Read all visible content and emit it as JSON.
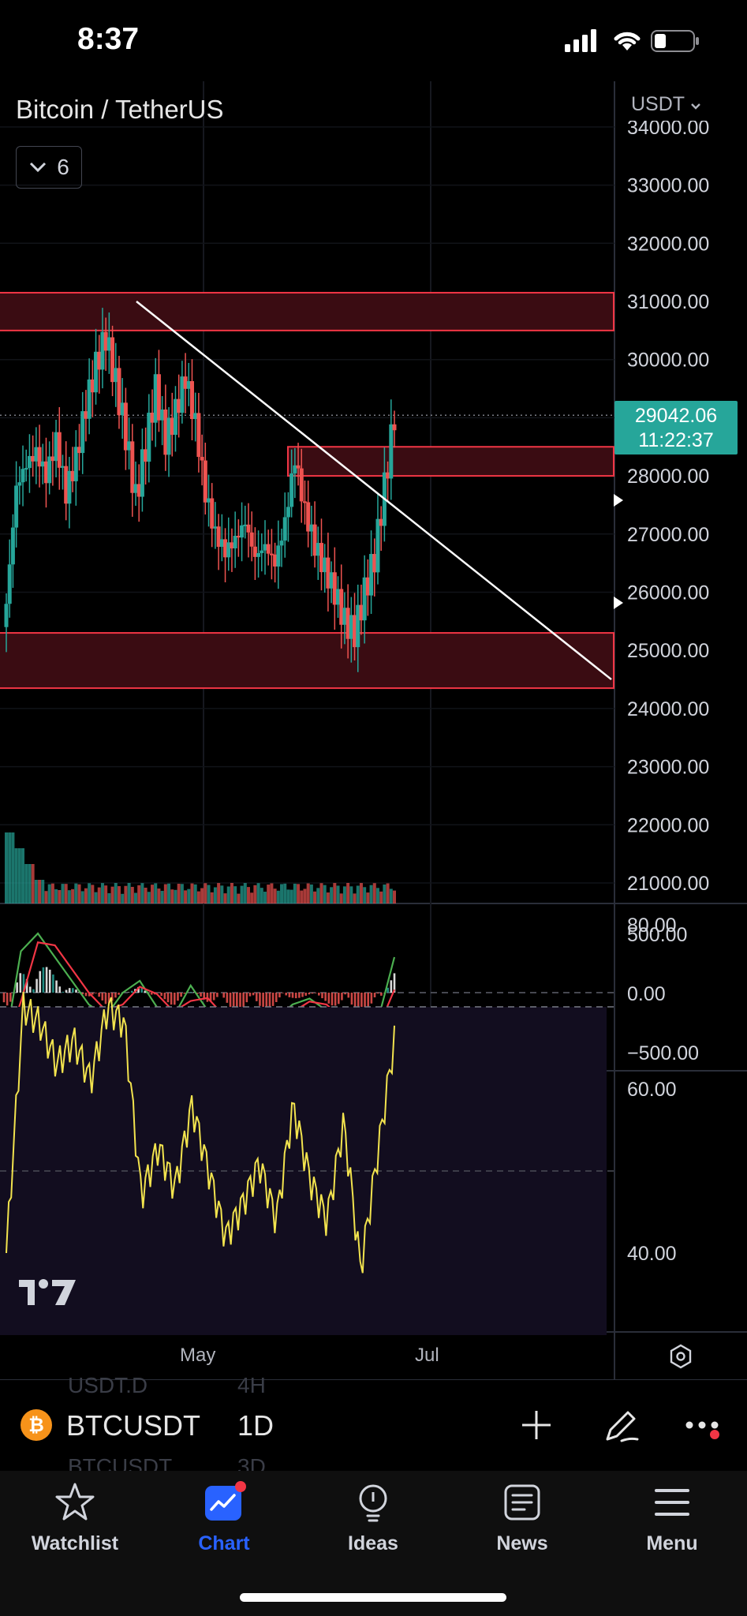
{
  "status_bar": {
    "time": "8:37"
  },
  "chart": {
    "symbol_title": "Bitcoin / TetherUS",
    "indicators_count": "6",
    "currency": "USDT",
    "last_price": "29042.06",
    "countdown": "11:22:37",
    "x_labels": [
      "May",
      "Jul"
    ],
    "price_axis": [
      "34000.00",
      "33000.00",
      "32000.00",
      "31000.00",
      "30000.00",
      "28000.00",
      "27000.00",
      "26000.00",
      "25000.00",
      "24000.00",
      "23000.00",
      "22000.00",
      "21000.00"
    ],
    "macd_axis": [
      "500.00",
      "0.00",
      "−500.00"
    ],
    "rsi_axis": [
      "80.00",
      "60.00",
      "40.00"
    ],
    "colors": {
      "up": "#26a69a",
      "down": "#ef5350",
      "zone": "#3a0c12",
      "zone_border": "#f23645",
      "rsi": "#f2e34e",
      "accent": "#2962ff"
    }
  },
  "chart_data": {
    "type": "candlestick",
    "title": "Bitcoin / TetherUS",
    "interval": "1D",
    "ylim": [
      20800,
      34300
    ],
    "last": 29042.06,
    "resistance_zone": [
      30500,
      31150
    ],
    "support_zone": [
      24350,
      25300
    ],
    "supply_box": [
      28000,
      28500
    ],
    "trendline": [
      [
        0,
        31000
      ],
      [
        1,
        24500
      ]
    ],
    "price": [
      25800,
      27800,
      28200,
      28400,
      28000,
      28600,
      27700,
      28300,
      29200,
      29900,
      30400,
      29600,
      28700,
      27600,
      28500,
      29500,
      28600,
      29100,
      29700,
      28900,
      27700,
      27000,
      26700,
      26900,
      27200,
      26600,
      26800,
      26500,
      27200,
      28300,
      27400,
      26800,
      26400,
      26000,
      25500,
      25300,
      26000,
      26600,
      27800,
      29042
    ],
    "macd": [
      -500,
      350,
      500,
      300,
      100,
      -100,
      -200,
      0,
      100,
      -120,
      -200,
      60,
      -150,
      -250,
      -300,
      -290,
      -230,
      -100,
      -50,
      -150,
      -300,
      -380,
      -250,
      300
    ],
    "rsi": [
      40,
      70,
      68,
      63,
      66,
      61,
      70,
      68,
      47,
      53,
      48,
      58,
      50,
      42,
      46,
      51,
      44,
      58,
      49,
      44,
      56,
      38,
      52,
      66
    ]
  },
  "toolbar": {
    "symbol": "BTCUSDT",
    "interval": "1D",
    "ghost_prev_symbol": "USDT.D",
    "ghost_prev_interval": "4H",
    "ghost_next_symbol": "BTCUSDT",
    "ghost_next_interval": "3D"
  },
  "tabs": [
    {
      "label": "Watchlist",
      "icon": "star-icon"
    },
    {
      "label": "Chart",
      "icon": "chart-icon"
    },
    {
      "label": "Ideas",
      "icon": "lightbulb-icon"
    },
    {
      "label": "News",
      "icon": "news-icon"
    },
    {
      "label": "Menu",
      "icon": "menu-icon"
    }
  ]
}
